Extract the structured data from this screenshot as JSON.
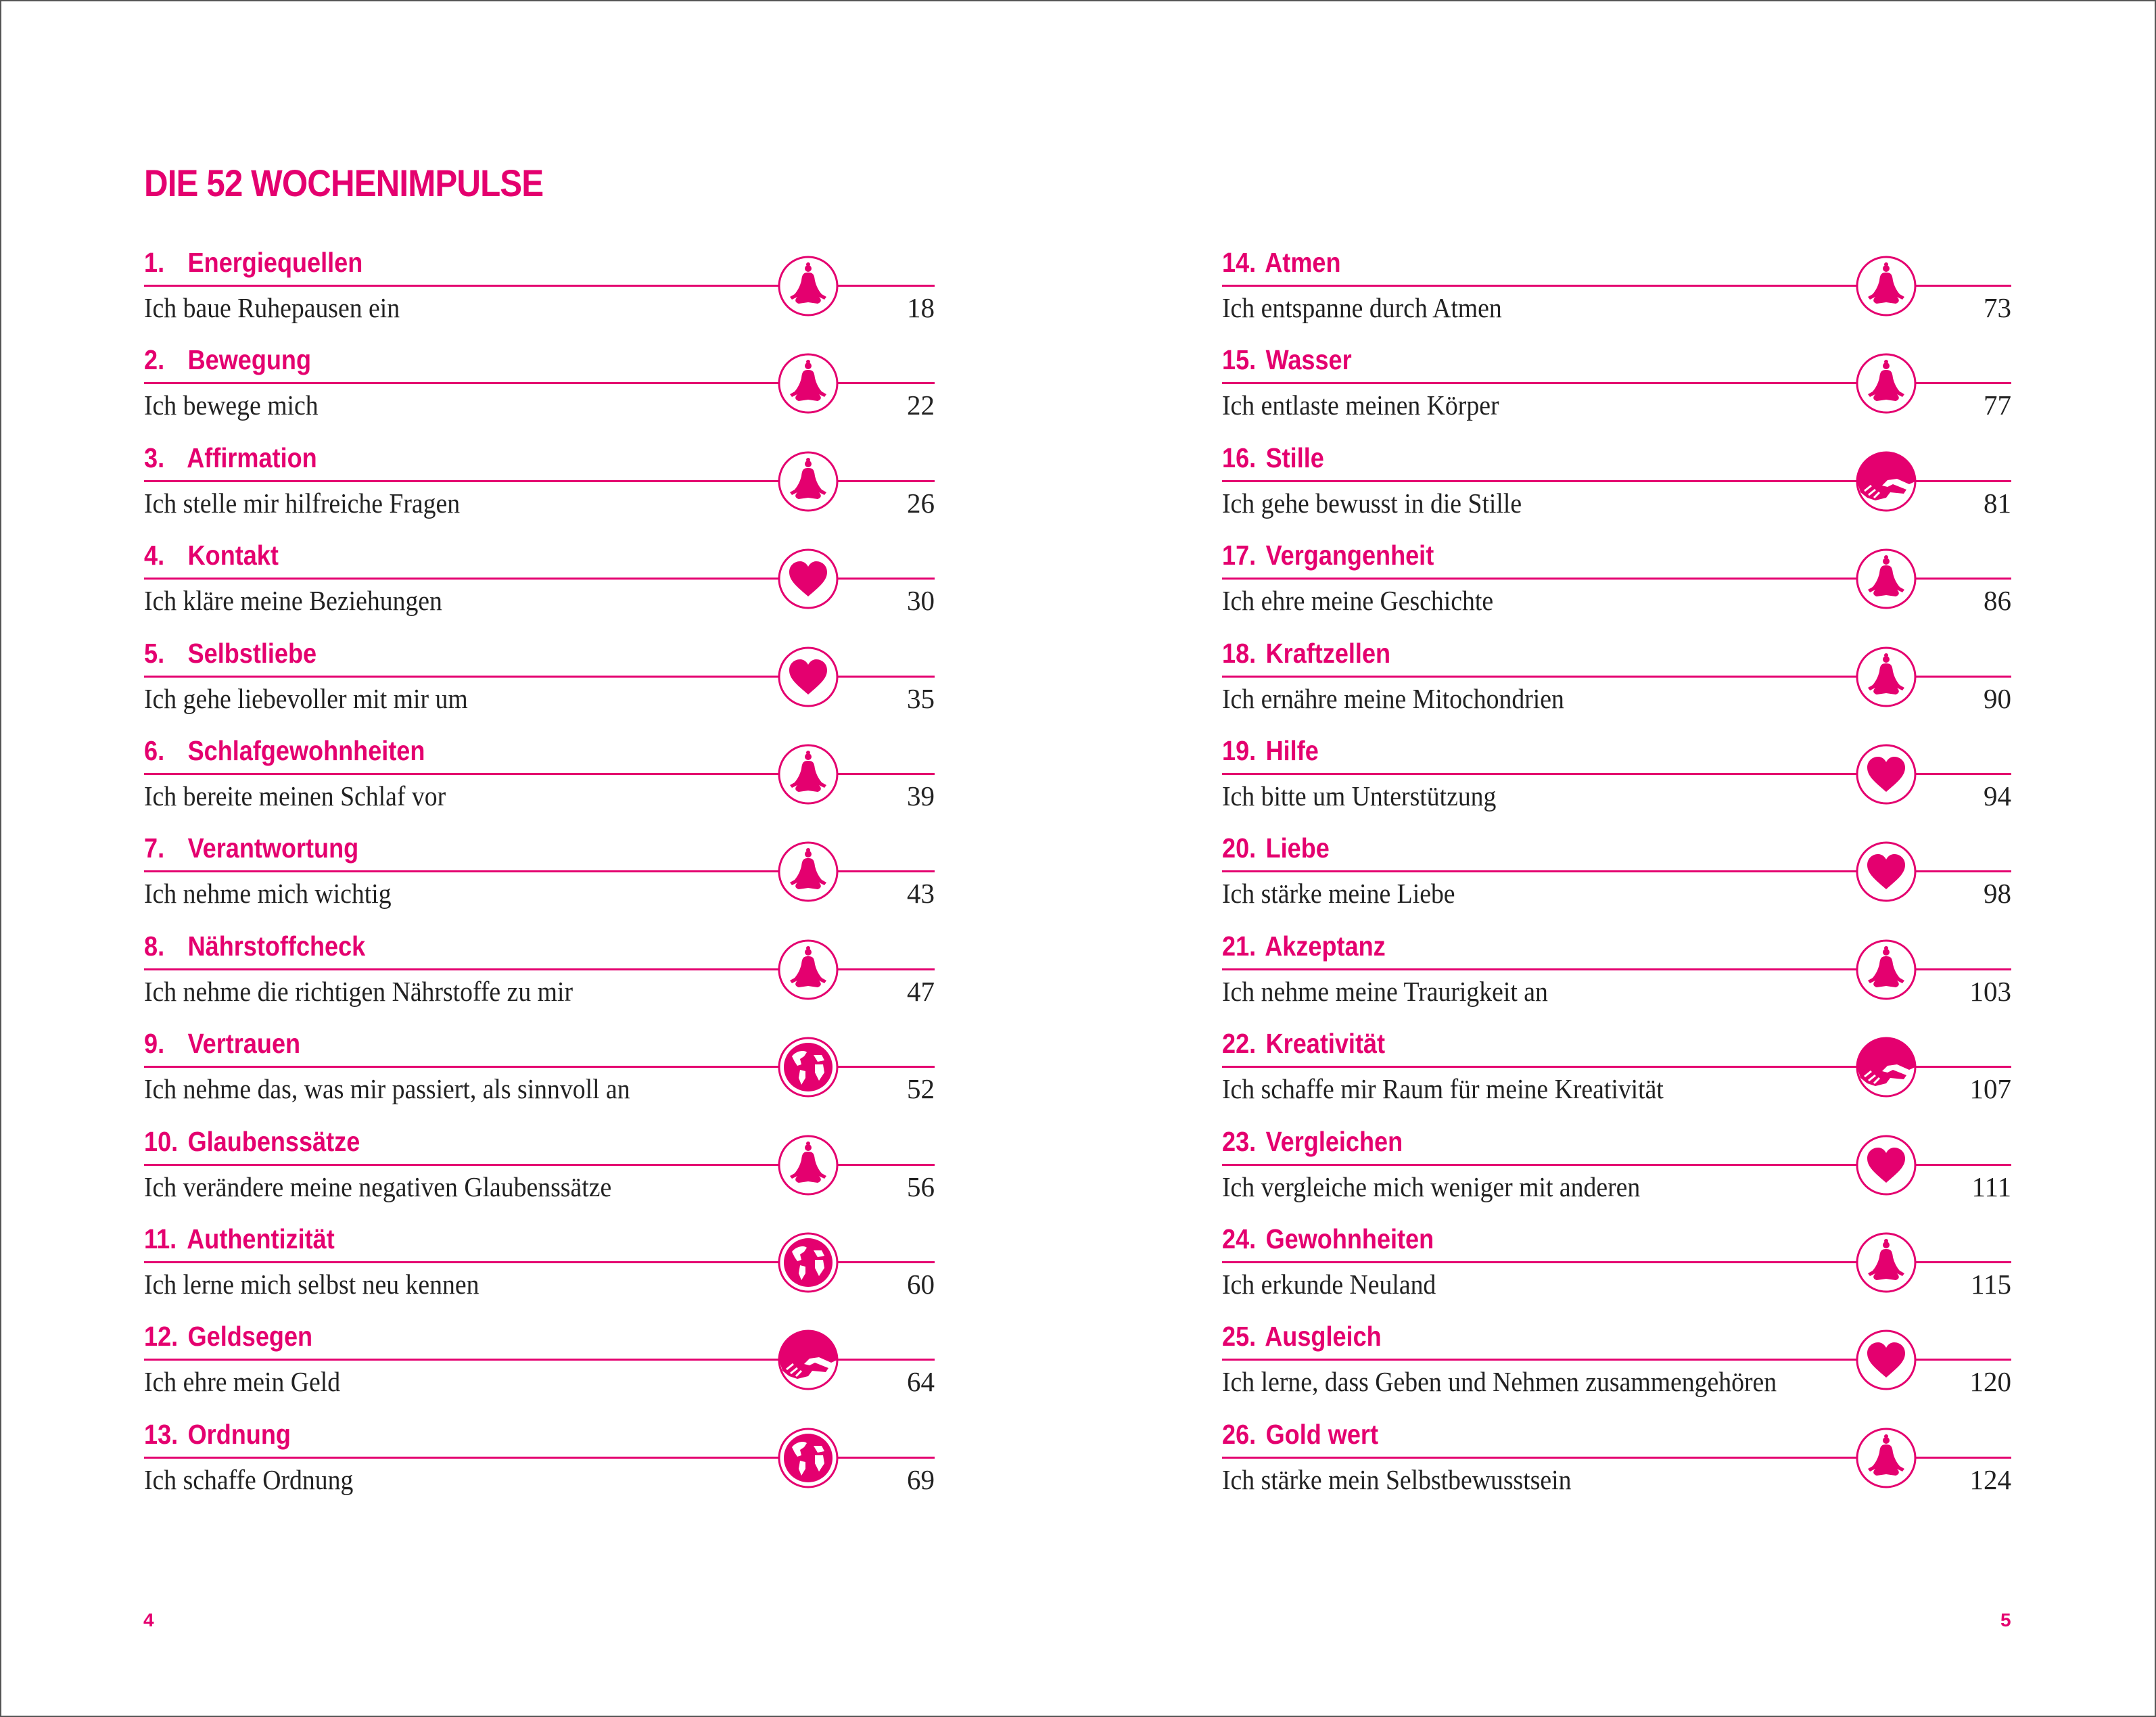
{
  "heading": "DIE 52 WOCHENIMPULSE",
  "accent_color": "#e4006f",
  "left_page_number": "4",
  "right_page_number": "5",
  "columns": [
    [
      {
        "num": "1.",
        "title": "Energiequellen",
        "subtitle": "Ich baue Ruhepausen ein",
        "page": "18",
        "icon": "lotus-icon"
      },
      {
        "num": "2.",
        "title": "Bewegung",
        "subtitle": "Ich bewege mich",
        "page": "22",
        "icon": "lotus-icon"
      },
      {
        "num": "3.",
        "title": "Affirmation",
        "subtitle": "Ich stelle mir hilfreiche Fragen",
        "page": "26",
        "icon": "lotus-icon"
      },
      {
        "num": "4.",
        "title": "Kontakt",
        "subtitle": "Ich kläre meine Beziehungen",
        "page": "30",
        "icon": "heart-icon"
      },
      {
        "num": "5.",
        "title": "Selbstliebe",
        "subtitle": "Ich gehe liebevoller mit mir um",
        "page": "35",
        "icon": "heart-icon"
      },
      {
        "num": "6.",
        "title": "Schlafgewohnheiten",
        "subtitle": "Ich bereite meinen Schlaf vor",
        "page": "39",
        "icon": "lotus-icon"
      },
      {
        "num": "7.",
        "title": "Verantwortung",
        "subtitle": "Ich nehme mich wichtig",
        "page": "43",
        "icon": "lotus-icon"
      },
      {
        "num": "8.",
        "title": "Nährstoffcheck",
        "subtitle": "Ich nehme die richtigen Nährstoffe zu mir",
        "page": "47",
        "icon": "lotus-icon"
      },
      {
        "num": "9.",
        "title": "Vertrauen",
        "subtitle": "Ich nehme das, was mir passiert, als sinnvoll an",
        "page": "52",
        "icon": "globe-icon"
      },
      {
        "num": "10.",
        "title": "Glaubenssätze",
        "subtitle": "Ich verändere meine negativen Glaubenssätze",
        "page": "56",
        "icon": "lotus-icon"
      },
      {
        "num": "11.",
        "title": "Authentizität",
        "subtitle": "Ich lerne mich selbst neu kennen",
        "page": "60",
        "icon": "globe-icon"
      },
      {
        "num": "12.",
        "title": "Geldsegen",
        "subtitle": "Ich ehre mein Geld",
        "page": "64",
        "icon": "handshake-icon"
      },
      {
        "num": "13.",
        "title": "Ordnung",
        "subtitle": "Ich schaffe Ordnung",
        "page": "69",
        "icon": "globe-icon"
      }
    ],
    [
      {
        "num": "14.",
        "title": "Atmen",
        "subtitle": "Ich entspanne durch Atmen",
        "page": "73",
        "icon": "lotus-icon"
      },
      {
        "num": "15.",
        "title": "Wasser",
        "subtitle": "Ich entlaste meinen Körper",
        "page": "77",
        "icon": "lotus-icon"
      },
      {
        "num": "16.",
        "title": "Stille",
        "subtitle": "Ich gehe bewusst in die Stille",
        "page": "81",
        "icon": "handshake-icon"
      },
      {
        "num": "17.",
        "title": "Vergangenheit",
        "subtitle": "Ich ehre meine Geschichte",
        "page": "86",
        "icon": "lotus-icon"
      },
      {
        "num": "18.",
        "title": "Kraftzellen",
        "subtitle": "Ich ernähre meine Mitochondrien",
        "page": "90",
        "icon": "lotus-icon"
      },
      {
        "num": "19.",
        "title": "Hilfe",
        "subtitle": "Ich bitte um Unterstützung",
        "page": "94",
        "icon": "heart-icon"
      },
      {
        "num": "20.",
        "title": "Liebe",
        "subtitle": "Ich stärke meine Liebe",
        "page": "98",
        "icon": "heart-icon"
      },
      {
        "num": "21.",
        "title": "Akzeptanz",
        "subtitle": "Ich nehme meine Traurigkeit an",
        "page": "103",
        "icon": "lotus-icon"
      },
      {
        "num": "22.",
        "title": "Kreativität",
        "subtitle": "Ich schaffe mir Raum für meine Kreativität",
        "page": "107",
        "icon": "handshake-icon"
      },
      {
        "num": "23.",
        "title": "Vergleichen",
        "subtitle": "Ich vergleiche mich weniger mit anderen",
        "page": "111",
        "icon": "heart-icon"
      },
      {
        "num": "24.",
        "title": "Gewohnheiten",
        "subtitle": "Ich erkunde Neuland",
        "page": "115",
        "icon": "lotus-icon"
      },
      {
        "num": "25.",
        "title": "Ausgleich",
        "subtitle": "Ich lerne, dass Geben und Nehmen zusammengehören",
        "page": "120",
        "icon": "heart-icon"
      },
      {
        "num": "26.",
        "title": "Gold wert",
        "subtitle": "Ich stärke mein Selbstbewusstsein",
        "page": "124",
        "icon": "lotus-icon"
      }
    ]
  ]
}
